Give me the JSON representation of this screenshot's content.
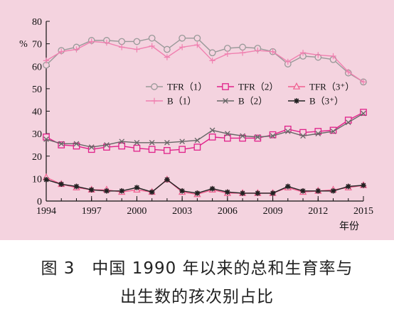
{
  "caption": {
    "line1": "图 3　中国 1990 年以来的总和生育率与",
    "line2": "出生数的孩次别占比"
  },
  "chart_data": {
    "type": "line",
    "title": "",
    "ylabel": "%",
    "xlabel": "年份",
    "xlim": [
      1994,
      2015
    ],
    "ylim": [
      0,
      80
    ],
    "x_ticks": [
      "1994",
      "1997",
      "2000",
      "2003",
      "2006",
      "2009",
      "2012",
      "2015"
    ],
    "y_ticks": [
      "0",
      "10",
      "20",
      "30",
      "40",
      "50",
      "60",
      "70",
      "80"
    ],
    "grid": false,
    "legend_position": "center-right",
    "x": [
      1994,
      1995,
      1996,
      1997,
      1998,
      1999,
      2000,
      2001,
      2002,
      2003,
      2004,
      2005,
      2006,
      2007,
      2008,
      2009,
      2010,
      2011,
      2012,
      2013,
      2014,
      2015
    ],
    "series": [
      {
        "name": "TFR（1）",
        "color": "#999999",
        "marker": "circle",
        "values": [
          60.5,
          67,
          68.5,
          71.5,
          71.5,
          71,
          71,
          72.5,
          67.5,
          72.5,
          72.5,
          66,
          68,
          68.5,
          68,
          66.5,
          61,
          64.5,
          64,
          63,
          57,
          53
        ]
      },
      {
        "name": "TFR（2）",
        "color": "#e0218a",
        "marker": "square",
        "values": [
          28.5,
          25,
          24.5,
          23,
          24,
          24.5,
          23.5,
          23,
          22.5,
          23,
          24,
          28.5,
          28,
          28,
          28,
          29.5,
          32,
          30.5,
          31,
          31.5,
          36,
          39.5
        ]
      },
      {
        "name": "TFR（3⁺）",
        "color": "#f06090",
        "marker": "triangle",
        "values": [
          10.5,
          7.5,
          6,
          5,
          5,
          4,
          5,
          4,
          9.5,
          4,
          3,
          5,
          3.5,
          3.5,
          3.5,
          3.5,
          6,
          4,
          4.5,
          5,
          6,
          7
        ]
      },
      {
        "name": "B（1）",
        "color": "#f080b0",
        "marker": "plus",
        "values": [
          62.5,
          66.5,
          67.5,
          71,
          70.5,
          68.5,
          67.5,
          69,
          64,
          68.5,
          69.5,
          62.5,
          65.5,
          66,
          67,
          66.5,
          62,
          66,
          65,
          64.5,
          57.5,
          53
        ]
      },
      {
        "name": "B（2）",
        "color": "#666666",
        "marker": "x",
        "values": [
          27.5,
          25.5,
          25.5,
          24,
          25,
          26.5,
          26,
          26,
          26,
          26.5,
          27,
          31.5,
          30,
          29,
          28.5,
          29,
          31,
          29,
          30,
          31,
          35,
          39
        ]
      },
      {
        "name": "B（3⁺）",
        "color": "#222222",
        "marker": "star",
        "values": [
          9.5,
          7.5,
          6.5,
          5,
          4.5,
          4.5,
          6,
          4,
          9.5,
          4.5,
          3.5,
          5.5,
          4,
          3.5,
          3.5,
          3.5,
          6.5,
          4.5,
          4.5,
          4.5,
          6.5,
          7
        ]
      }
    ],
    "legend_layout": [
      [
        "TFR（1）",
        "TFR（2）",
        "TFR（3⁺）"
      ],
      [
        "B（1）",
        "B（2）",
        "B（3⁺）"
      ]
    ]
  }
}
